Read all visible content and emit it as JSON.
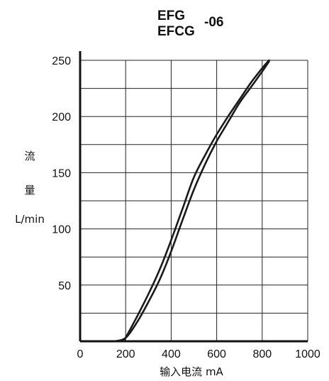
{
  "chart_data": {
    "type": "line",
    "title_lines": [
      "EFG",
      "EFCG"
    ],
    "title_suffix": "-06",
    "ylabel_lines": [
      "流",
      "量",
      "L/min"
    ],
    "xlabel": "输入电流  mA",
    "xlim": [
      0,
      1000
    ],
    "ylim": [
      0,
      250
    ],
    "x_ticks": [
      0,
      200,
      400,
      600,
      800,
      1000
    ],
    "y_ticks": [
      50,
      100,
      150,
      200,
      250
    ],
    "grid": true,
    "series": [
      {
        "x": [
          150,
          200,
          250,
          300,
          350,
          400,
          450,
          500,
          550,
          600,
          650,
          700,
          750,
          800,
          830
        ],
        "y": [
          0,
          3,
          17,
          35,
          55,
          80,
          108,
          135,
          158,
          178,
          195,
          212,
          226,
          240,
          249
        ]
      },
      {
        "x": [
          190,
          205,
          250,
          300,
          350,
          400,
          450,
          500,
          550,
          600,
          650,
          700,
          750,
          800,
          830
        ],
        "y": [
          0,
          5,
          22,
          42,
          64,
          90,
          118,
          146,
          166,
          184,
          200,
          215,
          230,
          243,
          250
        ]
      }
    ],
    "colors": {
      "line": "#1a1a1a",
      "grid": "#222222",
      "axis": "#111111"
    }
  }
}
